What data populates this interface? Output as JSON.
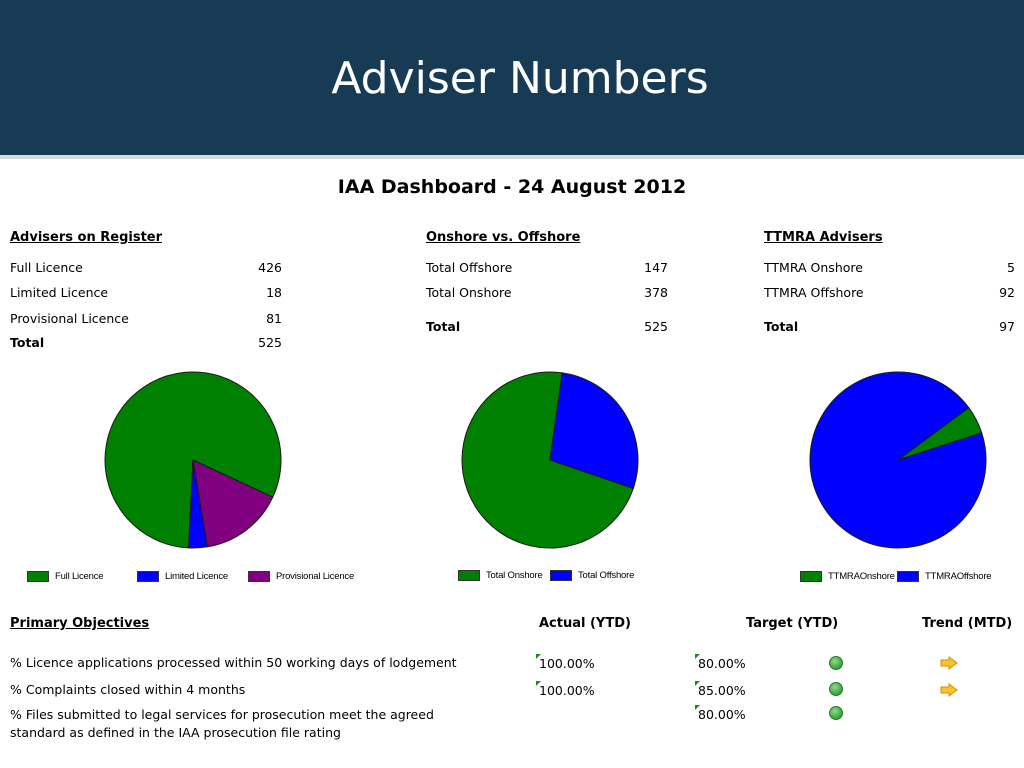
{
  "slide_title": "Adviser Numbers",
  "dashboard_title": "IAA Dashboard - 24 August 2012",
  "advisers_on_register": {
    "heading": "Advisers on Register",
    "rows": [
      {
        "label": "Full Licence",
        "value": "426"
      },
      {
        "label": "Limited Licence",
        "value": "18"
      },
      {
        "label": "Provisional Licence",
        "value": "81"
      }
    ],
    "total_label": "Total",
    "total_value": "525"
  },
  "onshore_offshore": {
    "heading": "Onshore vs. Offshore",
    "rows": [
      {
        "label": "Total Offshore",
        "value": "147"
      },
      {
        "label": "Total Onshore",
        "value": "378"
      }
    ],
    "total_label": "Total",
    "total_value": "525"
  },
  "ttmra_advisers": {
    "heading": "TTMRA Advisers",
    "rows": [
      {
        "label": "TTMRA Onshore",
        "value": "5"
      },
      {
        "label": "TTMRA Offshore",
        "value": "92"
      }
    ],
    "total_label": "Total",
    "total_value": "97"
  },
  "chart_data": [
    {
      "type": "pie",
      "categories": [
        "Full Licence",
        "Limited Licence",
        "Provisional Licence"
      ],
      "values": [
        426,
        18,
        81
      ],
      "colors": [
        "#008000",
        "#0000ff",
        "#800080"
      ],
      "legend": "bottom"
    },
    {
      "type": "pie",
      "categories": [
        "Total Onshore",
        "Total Offshore"
      ],
      "values": [
        378,
        147
      ],
      "colors": [
        "#008000",
        "#0000ff"
      ],
      "legend": "bottom"
    },
    {
      "type": "pie",
      "categories": [
        "TTMRAOnshore",
        "TTMRAOffshore"
      ],
      "values": [
        5,
        92
      ],
      "colors": [
        "#008000",
        "#0000ff"
      ],
      "legend": "bottom"
    }
  ],
  "objectives": {
    "heading": "Primary Objectives",
    "col_actual": "Actual (YTD)",
    "col_target": "Target (YTD)",
    "col_trend": "Trend (MTD)",
    "rows": [
      {
        "text": "% Licence applications processed within 50 working days of lodgement",
        "actual": "100.00%",
        "target": "80.00%",
        "status": "green",
        "trend": "right-arrow"
      },
      {
        "text": "% Complaints closed within 4 months",
        "actual": "100.00%",
        "target": "85.00%",
        "status": "green",
        "trend": "right-arrow"
      },
      {
        "text": "% Files submitted to legal services for prosecution meet the agreed standard as defined in the IAA prosecution file rating",
        "actual": "",
        "target": "80.00%",
        "status": "green",
        "trend": ""
      }
    ],
    "status_color": "#3aa13a",
    "trend_color": "#f5b800"
  }
}
